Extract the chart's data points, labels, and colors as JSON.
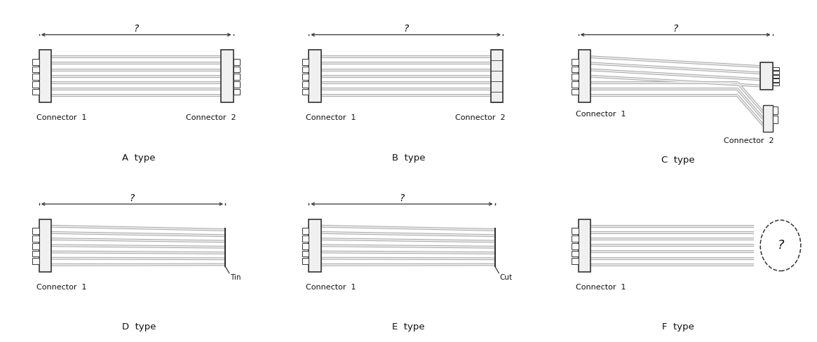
{
  "background": "#ffffff",
  "lc": "#333333",
  "panels": [
    {
      "label": "A  type",
      "conn1": "Connector  1",
      "conn2": "Connector  2",
      "type": "A",
      "col": 0,
      "row": 0
    },
    {
      "label": "B  type",
      "conn1": "Connector  1",
      "conn2": "Connector  2",
      "type": "B",
      "col": 1,
      "row": 0
    },
    {
      "label": "C  type",
      "conn1": "Connector  1",
      "conn2": "Connector  2",
      "type": "C",
      "col": 2,
      "row": 0
    },
    {
      "label": "D  type",
      "conn1": "Connector  1",
      "conn2": "Tin",
      "type": "D",
      "col": 0,
      "row": 1
    },
    {
      "label": "E  type",
      "conn1": "Connector  1",
      "conn2": "Cut",
      "type": "E",
      "col": 1,
      "row": 1
    },
    {
      "label": "F  type",
      "conn1": "Connector  1",
      "conn2": null,
      "type": "F",
      "col": 2,
      "row": 1
    }
  ]
}
